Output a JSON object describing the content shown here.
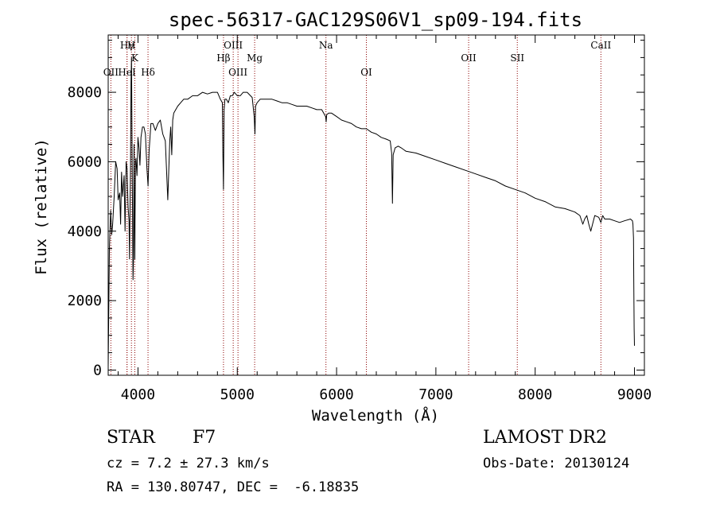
{
  "chart_data": {
    "type": "line",
    "title": "spec-56317-GAC129S06V1_sp09-194.fits",
    "xlabel": "Wavelength (Å)",
    "ylabel": "Flux (relative)",
    "xlim": [
      3700,
      9100
    ],
    "ylim": [
      -150,
      9650
    ],
    "xticks": [
      4000,
      5000,
      6000,
      7000,
      8000,
      9000
    ],
    "xtick_labels": [
      "4000",
      "5000",
      "6000",
      "7000",
      "8000",
      "9000"
    ],
    "yticks": [
      0,
      2000,
      4000,
      6000,
      8000
    ],
    "ytick_labels": [
      "0",
      "2000",
      "4000",
      "6000",
      "8000"
    ],
    "grid": false,
    "line_color": "#000000",
    "marker_line_color": "#8b0000",
    "series": [
      {
        "x": [
          3700,
          3712,
          3725,
          3735,
          3745,
          3760,
          3775,
          3790,
          3800,
          3815,
          3825,
          3835,
          3845,
          3860,
          3870,
          3880,
          3890,
          3900,
          3910,
          3915,
          3920,
          3925,
          3930,
          3935,
          3940,
          3945,
          3950,
          3955,
          3960,
          3965,
          3968,
          3970,
          3975,
          3980,
          3990,
          4000,
          4010,
          4020,
          4030,
          4045,
          4060,
          4075,
          4090,
          4101,
          4112,
          4130,
          4150,
          4175,
          4200,
          4225,
          4250,
          4275,
          4300,
          4320,
          4330,
          4340,
          4350,
          4360,
          4380,
          4400,
          4430,
          4460,
          4500,
          4550,
          4600,
          4650,
          4700,
          4750,
          4800,
          4830,
          4850,
          4855,
          4861,
          4867,
          4875,
          4890,
          4910,
          4930,
          4950,
          4970,
          5000,
          5030,
          5060,
          5100,
          5150,
          5170,
          5178,
          5184,
          5200,
          5230,
          5270,
          5300,
          5350,
          5400,
          5450,
          5500,
          5550,
          5600,
          5650,
          5700,
          5750,
          5800,
          5850,
          5890,
          5895,
          5900,
          5920,
          5950,
          6000,
          6050,
          6100,
          6150,
          6200,
          6250,
          6300,
          6350,
          6400,
          6450,
          6500,
          6540,
          6555,
          6563,
          6570,
          6590,
          6620,
          6650,
          6700,
          6800,
          6900,
          7000,
          7100,
          7200,
          7300,
          7400,
          7500,
          7600,
          7700,
          7800,
          7900,
          8000,
          8100,
          8200,
          8300,
          8400,
          8450,
          8480,
          8498,
          8520,
          8540,
          8560,
          8600,
          8640,
          8662,
          8680,
          8700,
          8750,
          8800,
          8850,
          8900,
          8960,
          8980,
          8985,
          8990,
          8993,
          8997,
          9000
        ],
        "y": [
          100,
          3500,
          4600,
          3900,
          4200,
          5000,
          6000,
          5800,
          4900,
          5100,
          4200,
          5700,
          5000,
          5600,
          4000,
          6000,
          5800,
          4700,
          4300,
          3200,
          4800,
          5900,
          8300,
          9000,
          6500,
          4500,
          2600,
          3200,
          6500,
          4100,
          3200,
          4200,
          6000,
          6100,
          5600,
          6700,
          6400,
          5900,
          6700,
          7000,
          7000,
          6800,
          5800,
          5300,
          6300,
          7100,
          7100,
          6900,
          7100,
          7200,
          6800,
          6600,
          4900,
          6600,
          7000,
          6200,
          7200,
          7400,
          7500,
          7600,
          7700,
          7800,
          7800,
          7900,
          7900,
          8000,
          7950,
          8000,
          8000,
          7800,
          7700,
          6200,
          5200,
          7500,
          7800,
          7800,
          7700,
          7900,
          7900,
          8000,
          7900,
          7900,
          8000,
          8000,
          7850,
          7300,
          6800,
          7600,
          7700,
          7800,
          7800,
          7800,
          7800,
          7750,
          7700,
          7700,
          7650,
          7600,
          7600,
          7600,
          7550,
          7500,
          7500,
          7300,
          7150,
          7350,
          7400,
          7400,
          7300,
          7200,
          7150,
          7100,
          7000,
          6950,
          6950,
          6850,
          6800,
          6700,
          6650,
          6600,
          6250,
          4800,
          6200,
          6400,
          6450,
          6400,
          6300,
          6250,
          6150,
          6050,
          5950,
          5850,
          5750,
          5650,
          5550,
          5450,
          5300,
          5200,
          5100,
          4950,
          4850,
          4700,
          4650,
          4550,
          4450,
          4200,
          4350,
          4450,
          4200,
          4000,
          4450,
          4400,
          4250,
          4450,
          4350,
          4350,
          4300,
          4250,
          4300,
          4350,
          4300,
          4200,
          3800,
          2700,
          1200,
          700
        ]
      }
    ],
    "line_markers": [
      {
        "label": "OII",
        "wavelength": 3727,
        "row": 3
      },
      {
        "label": "Hγ",
        "wavelength": 3890,
        "row": 1
      },
      {
        "label": "H",
        "wavelength": 3934,
        "row": 1
      },
      {
        "label": "K",
        "wavelength": 3968,
        "row": 2
      },
      {
        "label": "HeI",
        "wavelength": 3889,
        "row": 3
      },
      {
        "label": "Hδ",
        "wavelength": 4101,
        "row": 3
      },
      {
        "label": "Hβ",
        "wavelength": 4861,
        "row": 2
      },
      {
        "label": "OIII",
        "wavelength": 4959,
        "row": 1
      },
      {
        "label": "OIII",
        "wavelength": 5007,
        "row": 3
      },
      {
        "label": "Mg",
        "wavelength": 5175,
        "row": 2
      },
      {
        "label": "Na",
        "wavelength": 5893,
        "row": 1
      },
      {
        "label": "OI",
        "wavelength": 6300,
        "row": 3
      },
      {
        "label": "OII",
        "wavelength": 7330,
        "row": 2
      },
      {
        "label": "SII",
        "wavelength": 7820,
        "row": 2
      },
      {
        "label": "CaII",
        "wavelength": 8662,
        "row": 1
      }
    ]
  },
  "info": {
    "object_class": "STAR",
    "subclass": "F7",
    "redshift_text": "cz = 7.2 ± 27.3 km/s",
    "coords_text": "RA = 130.80747, DEC =  -6.18835",
    "survey": "LAMOST DR2",
    "obs_date_text": "Obs-Date: 20130124"
  }
}
